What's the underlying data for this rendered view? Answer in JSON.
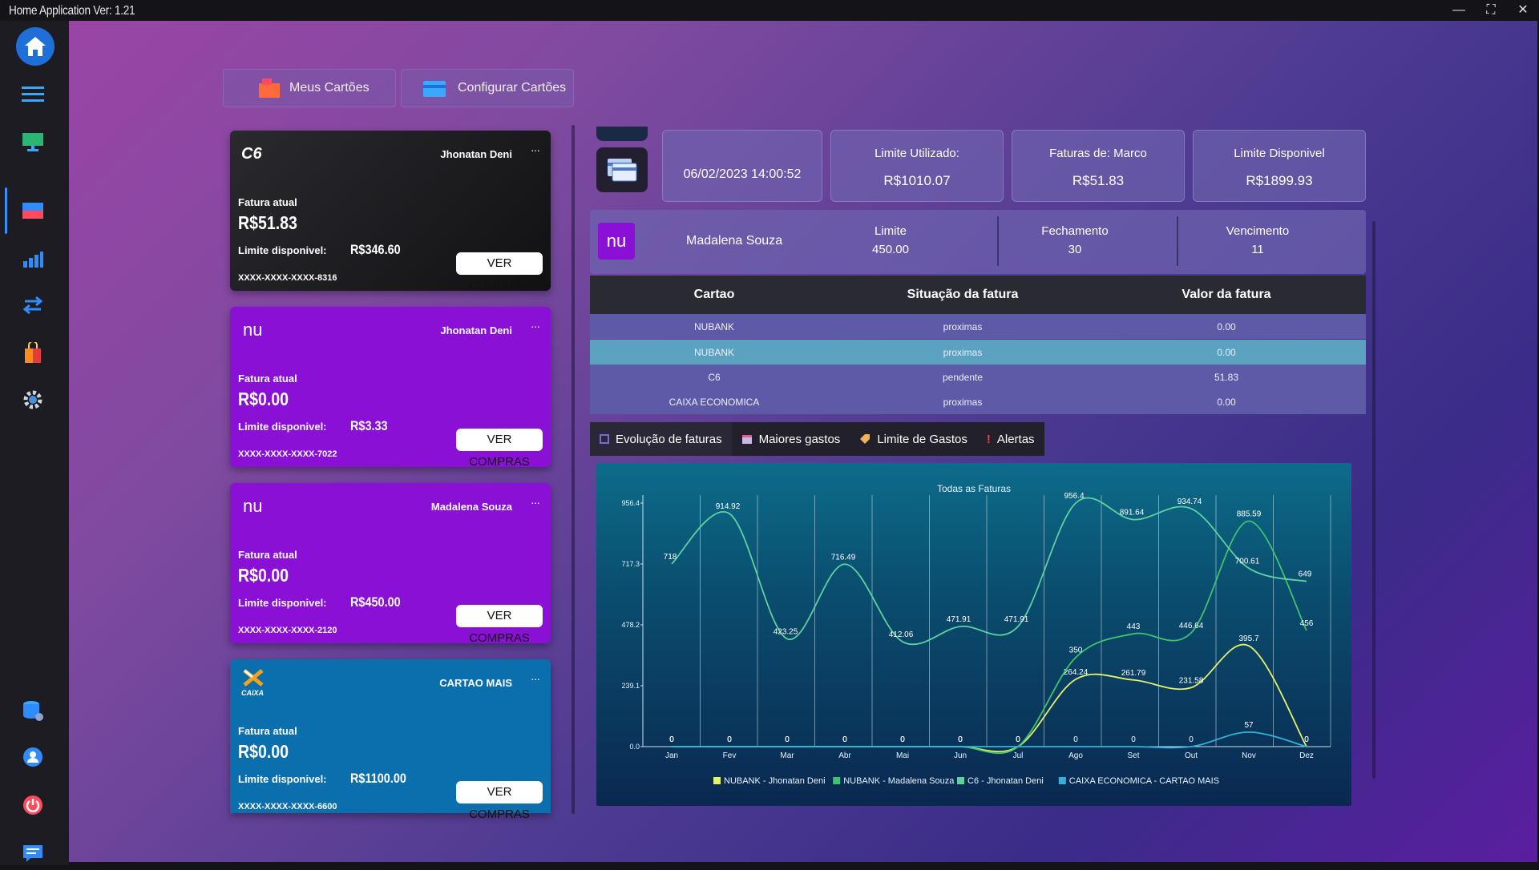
{
  "window": {
    "title": "Home Application Ver: 1.21",
    "minimize": "—",
    "maximize": "⛶",
    "close": "✕"
  },
  "sidebar": {
    "items": [
      "home-icon",
      "menu-icon",
      "monitor-icon",
      "cards-icon",
      "chart-icon",
      "transfer-icon",
      "shop-icon",
      "gear-icon",
      "database-icon",
      "user-icon",
      "power-icon",
      "chat-icon"
    ]
  },
  "topbar": {
    "meus_cartoes": "Meus Cartões",
    "configurar_cartoes": "Configurar Cartões"
  },
  "cards": [
    {
      "brand": "C6",
      "holder": "Jhonatan Deni",
      "fatura_label": "Fatura atual",
      "fatura": "R$51.83",
      "limite_label": "Limite disponivel:",
      "limite": "R$346.60",
      "numero": "XXXX-XXXX-XXXX-8316",
      "button": "VER COMPRAS",
      "color": "#1f1f22"
    },
    {
      "brand": "nu",
      "holder": "Jhonatan Deni",
      "fatura_label": "Fatura atual",
      "fatura": "R$0.00",
      "limite_label": "Limite disponivel:",
      "limite": "R$3.33",
      "numero": "XXXX-XXXX-XXXX-7022",
      "button": "VER COMPRAS",
      "color": "#8a10d6"
    },
    {
      "brand": "nu",
      "holder": "Madalena Souza",
      "fatura_label": "Fatura atual",
      "fatura": "R$0.00",
      "limite_label": "Limite disponivel:",
      "limite": "R$450.00",
      "numero": "XXXX-XXXX-XXXX-2120",
      "button": "VER COMPRAS",
      "color": "#8a10d6"
    },
    {
      "brand": "CAIXA",
      "holder": "CARTAO MAIS",
      "fatura_label": "Fatura atual",
      "fatura": "R$0.00",
      "limite_label": "Limite disponivel:",
      "limite": "R$1100.00",
      "numero": "XXXX-XXXX-XXXX-6600",
      "button": "VER COMPRAS",
      "color": "#0b6fae"
    }
  ],
  "info": {
    "datetime": "06/02/2023 14:00:52",
    "limite_utilizado_label": "Limite Utilizado:",
    "limite_utilizado": "R$1010.07",
    "faturas_label": "Faturas de: Marco",
    "faturas": "R$51.83",
    "limite_disponivel_label": "Limite Disponivel",
    "limite_disponivel": "R$1899.93"
  },
  "selected_card": {
    "name": "Madalena Souza",
    "limite_label": "Limite",
    "limite": "450.00",
    "fechamento_label": "Fechamento",
    "fechamento": "30",
    "vencimento_label": "Vencimento",
    "vencimento": "11"
  },
  "table": {
    "headers": [
      "Cartao",
      "Situação da fatura",
      "Valor da fatura"
    ],
    "rows": [
      [
        "NUBANK",
        "proximas",
        "0.00"
      ],
      [
        "NUBANK",
        "proximas",
        "0.00"
      ],
      [
        "C6",
        "pendente",
        "51.83"
      ],
      [
        "CAIXA ECONOMICA",
        "proximas",
        "0.00"
      ]
    ]
  },
  "tabs": [
    "Evolução de faturas",
    "Maiores gastos",
    "Limite de Gastos",
    "Alertas"
  ],
  "chart_data": {
    "type": "line",
    "title": "Todas as Faturas",
    "categories": [
      "Jan",
      "Fev",
      "Mar",
      "Abr",
      "Mai",
      "Jun",
      "Jul",
      "Ago",
      "Set",
      "Out",
      "Nov",
      "Dez"
    ],
    "y_ticks": [
      "0.0",
      "239.1",
      "478.2",
      "717.3",
      "956.4"
    ],
    "ylim": [
      0,
      956.4
    ],
    "series": [
      {
        "name": "NUBANK - Jhonatan Deni",
        "color": "#e6f26a",
        "values": [
          0,
          0,
          0,
          0,
          0,
          0,
          0,
          264.24,
          261.79,
          231.58,
          395.7,
          0
        ]
      },
      {
        "name": "NUBANK - Madalena Souza",
        "color": "#3ec46d",
        "values": [
          0,
          0,
          0,
          0,
          0,
          0,
          0,
          350,
          443,
          446.64,
          885.59,
          456
        ]
      },
      {
        "name": "C6 - Jhonatan Deni",
        "color": "#5fd1a1",
        "values": [
          718,
          914.92,
          423.25,
          716.49,
          412.06,
          471.91,
          471.91,
          956.4,
          891.64,
          934.74,
          700.61,
          649
        ]
      },
      {
        "name": "CAIXA ECONOMICA - CARTAO MAIS",
        "color": "#2fb4d8",
        "values": [
          0,
          0,
          0,
          0,
          0,
          0,
          0,
          0,
          0,
          0,
          57,
          0
        ]
      }
    ]
  }
}
